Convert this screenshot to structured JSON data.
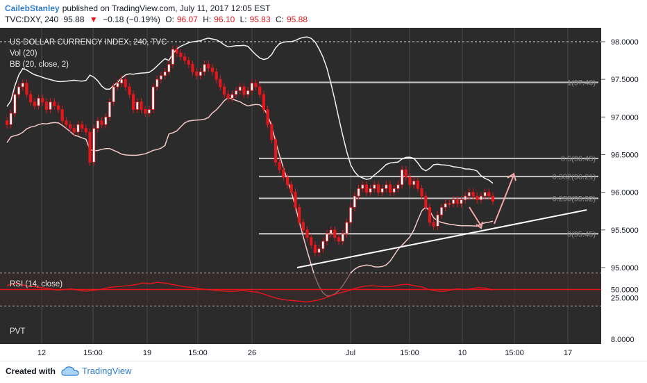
{
  "header": {
    "author": "CailebStanley",
    "published_text": "published on TradingView.com, July 11, 2017 12:05 EST",
    "symbol": "TVC:DXY, 240",
    "last": "95.88",
    "change_arrow": "▼",
    "change": "−0.18 (−0.19%)",
    "open_label": "O:",
    "open": "96.07",
    "high_label": "H:",
    "high": "96.10",
    "low_label": "L:",
    "low": "95.83",
    "close_label": "C:",
    "close": "95.88"
  },
  "footer": {
    "created_with": "Created with",
    "brand": "TradingView"
  },
  "colors": {
    "bg": "#2b2b2b",
    "candle": "#e5161c",
    "band": "#f2f2f2",
    "mid": "#f3c9c9",
    "rsi": "#e5161c",
    "grid": "#4a4a4a",
    "accent": "#f4a6a6"
  },
  "chart_data": {
    "type": "candlestick",
    "title": "US DOLLAR CURRENCY INDEX, 240, TVC",
    "indicators": [
      "Vol (20)",
      "BB (20, close, 2)"
    ],
    "y_ticks": [
      "98.0000",
      "97.5000",
      "97.0000",
      "96.5000",
      "96.0000",
      "95.5000",
      "95.0000"
    ],
    "x_ticks": [
      "12",
      "15:00",
      "19",
      "15:00",
      "26",
      "Jul",
      "15:00",
      "10",
      "15:00",
      "17"
    ],
    "ylim": [
      95.0,
      98.0
    ],
    "close_series": [
      96.9,
      97.05,
      97.3,
      97.4,
      97.45,
      97.3,
      97.2,
      97.15,
      97.25,
      97.2,
      97.1,
      97.2,
      97.15,
      97.1,
      96.95,
      96.9,
      96.85,
      96.8,
      96.9,
      96.85,
      96.8,
      96.4,
      96.85,
      96.95,
      96.9,
      97.0,
      97.2,
      97.4,
      97.45,
      97.5,
      97.4,
      97.3,
      97.1,
      97.2,
      97.1,
      97.05,
      97.1,
      97.4,
      97.5,
      97.55,
      97.6,
      97.7,
      97.9,
      97.85,
      97.8,
      97.75,
      97.7,
      97.6,
      97.55,
      97.6,
      97.7,
      97.65,
      97.6,
      97.5,
      97.4,
      97.3,
      97.25,
      97.3,
      97.35,
      97.4,
      97.3,
      97.35,
      97.45,
      97.4,
      97.3,
      97.1,
      96.9,
      96.7,
      96.4,
      96.3,
      96.2,
      96.1,
      96.0,
      95.8,
      95.6,
      95.5,
      95.4,
      95.3,
      95.2,
      95.25,
      95.35,
      95.45,
      95.5,
      95.4,
      95.35,
      95.45,
      95.6,
      95.8,
      95.95,
      96.05,
      96.1,
      96.0,
      96.05,
      96.1,
      96.0,
      96.05,
      96.1,
      96.0,
      96.05,
      96.1,
      96.3,
      96.2,
      96.1,
      96.15,
      96.05,
      95.95,
      95.8,
      95.6,
      95.55,
      95.7,
      95.8,
      95.85,
      95.85,
      95.9,
      95.85,
      95.9,
      95.95,
      96.0,
      95.95,
      95.9,
      95.95,
      96.0,
      95.95,
      95.88
    ],
    "fibonacci": [
      {
        "label": "1(97.46)",
        "value": 97.46
      },
      {
        "label": "0.5(96.45)",
        "value": 96.45
      },
      {
        "label": "0.382(96.21)",
        "value": 96.21
      },
      {
        "label": "0.256(95.92)",
        "value": 95.92
      },
      {
        "label": "0(95.45)",
        "value": 95.45
      }
    ],
    "rsi": {
      "label": "RSI (14, close)",
      "ticks": [
        "50.0000",
        "25.0000"
      ],
      "ylim": [
        0,
        100
      ],
      "values": [
        62,
        68,
        65,
        60,
        58,
        55,
        52,
        48,
        50,
        52,
        48,
        45,
        47,
        50,
        55,
        58,
        60,
        62,
        65,
        70,
        68,
        72,
        70,
        66,
        62,
        58,
        56,
        52,
        50,
        48,
        46,
        44,
        45,
        47,
        44,
        42,
        36,
        28,
        22,
        18,
        16,
        14,
        12,
        15,
        20,
        28,
        36,
        42,
        48,
        55,
        60,
        62,
        60,
        58,
        60,
        64,
        66,
        62,
        58,
        50,
        46,
        44,
        48,
        52,
        50,
        52,
        56,
        54,
        48
      ]
    },
    "pvt": {
      "label": "PVT",
      "tick": "8.0000"
    }
  }
}
